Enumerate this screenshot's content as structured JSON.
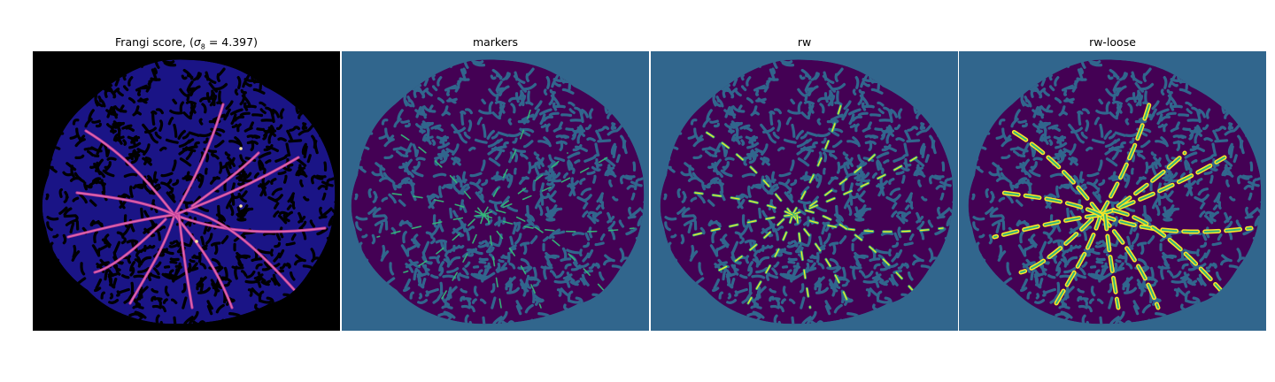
{
  "panels": [
    {
      "title": "Frangi score, (",
      "title_math": "σ",
      "title_sub": "8",
      "title_tail": " = 4.397)",
      "image_kind": "frangi-vesselness",
      "background": "#000000",
      "tissue_color": "#1a1486",
      "dark_pattern": "#000000",
      "vessel_colors": [
        "#c43c9a",
        "#e870b0",
        "#ffe7a0"
      ]
    },
    {
      "title": "markers",
      "image_kind": "marker-map",
      "background": "#31668d",
      "tissue_color": "#440154",
      "pattern_color": "#31668d",
      "vessel_colors": [
        "#35b779"
      ]
    },
    {
      "title": "rw",
      "image_kind": "random-walker-segmentation",
      "background": "#31668d",
      "tissue_color": "#440154",
      "pattern_color": "#31668d",
      "vessel_colors": [
        "#35b779",
        "#fde725"
      ]
    },
    {
      "title": "rw-loose",
      "image_kind": "random-walker-loose-segmentation",
      "background": "#31668d",
      "tissue_color": "#440154",
      "pattern_color": "#31668d",
      "vessel_colors": [
        "#35b779",
        "#fde725"
      ]
    }
  ]
}
